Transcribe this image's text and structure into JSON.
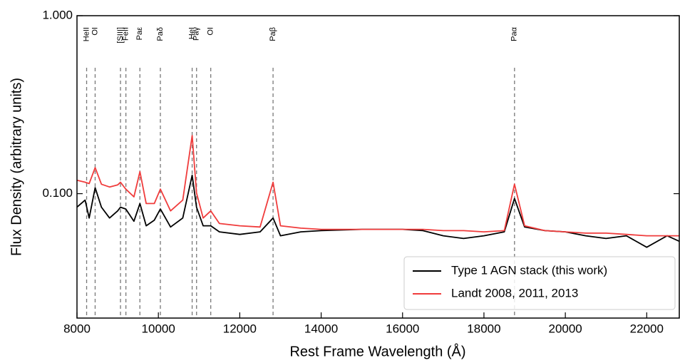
{
  "chart_data": {
    "type": "line",
    "xlabel": "Rest Frame Wavelength (Å)",
    "ylabel": "Flux Density (arbitrary units)",
    "x": [
      8000,
      8200,
      8300,
      8446,
      8600,
      8800,
      9000,
      9069,
      9200,
      9400,
      9546,
      9700,
      9900,
      10049,
      10300,
      10600,
      10830,
      10938,
      11100,
      11287,
      11500,
      12000,
      12500,
      12818,
      13000,
      13500,
      14000,
      15000,
      16000,
      16500,
      17000,
      17500,
      18000,
      18500,
      18751,
      19000,
      19500,
      20000,
      20500,
      21000,
      21500,
      22000,
      22500,
      22800
    ],
    "series": [
      {
        "name": "Type 1 AGN stack (this work)",
        "color": "#000000",
        "values": [
          0.084,
          0.092,
          0.073,
          0.108,
          0.084,
          0.073,
          0.08,
          0.084,
          0.082,
          0.07,
          0.088,
          0.066,
          0.071,
          0.082,
          0.065,
          0.073,
          0.127,
          0.084,
          0.066,
          0.066,
          0.061,
          0.059,
          0.061,
          0.073,
          0.058,
          0.061,
          0.062,
          0.063,
          0.063,
          0.062,
          0.058,
          0.056,
          0.058,
          0.061,
          0.094,
          0.065,
          0.062,
          0.061,
          0.058,
          0.056,
          0.058,
          0.05,
          0.058,
          0.054
        ]
      },
      {
        "name": "Landt 2008, 2011, 2013",
        "color": "#f03c3c",
        "values": [
          0.119,
          0.116,
          0.114,
          0.14,
          0.113,
          0.109,
          0.112,
          0.116,
          0.106,
          0.096,
          0.133,
          0.088,
          0.088,
          0.106,
          0.08,
          0.092,
          0.212,
          0.101,
          0.073,
          0.08,
          0.068,
          0.066,
          0.065,
          0.116,
          0.066,
          0.064,
          0.063,
          0.063,
          0.063,
          0.063,
          0.062,
          0.062,
          0.061,
          0.062,
          0.113,
          0.066,
          0.062,
          0.061,
          0.06,
          0.06,
          0.059,
          0.058,
          0.058,
          0.058
        ]
      }
    ],
    "lines": [
      {
        "label": "HeII",
        "x": 8237
      },
      {
        "label": "OI",
        "x": 8446
      },
      {
        "label": "[SIII]",
        "x": 9069
      },
      {
        "label": "FeII",
        "x": 9202
      },
      {
        "label": "Paε",
        "x": 9546
      },
      {
        "label": "Paδ",
        "x": 10049
      },
      {
        "label": "HeI",
        "x": 10830
      },
      {
        "label": "Paγ",
        "x": 10938
      },
      {
        "label": "OI",
        "x": 11287
      },
      {
        "label": "Paβ",
        "x": 12818
      },
      {
        "label": "Paα",
        "x": 18751
      }
    ],
    "xlim": [
      8000,
      22800
    ],
    "xticks": [
      8000,
      10000,
      12000,
      14000,
      16000,
      18000,
      20000,
      22000
    ],
    "ylim": [
      0.02,
      1
    ],
    "yscale": "log",
    "yticks": [
      {
        "value": 0.1,
        "label": "0.100"
      },
      {
        "value": 1,
        "label": "1.000"
      }
    ],
    "legend": "lower right"
  }
}
